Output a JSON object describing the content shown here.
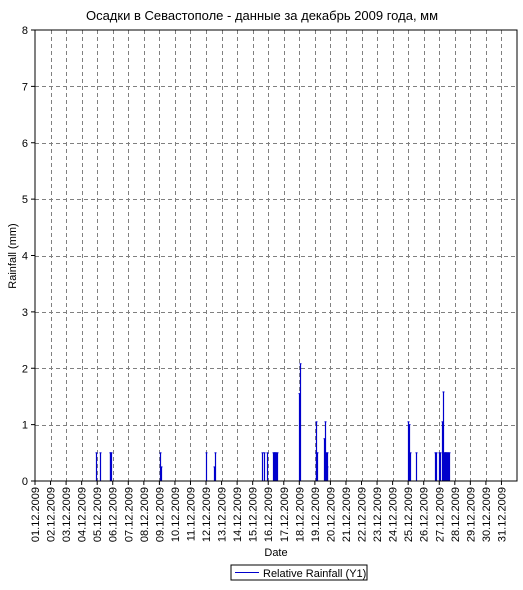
{
  "chart_data": {
    "type": "bar",
    "title": "Осадки в Севастополе - данные за декабрь 2009 года, мм",
    "xlabel": "Date",
    "ylabel": "Rainfall (mm)",
    "ylim": [
      0,
      8
    ],
    "y_ticks": [
      "0",
      "1",
      "2",
      "3",
      "4",
      "5",
      "6",
      "7",
      "8"
    ],
    "x_range_days": [
      1,
      32
    ],
    "grid": true,
    "legend_position": "bottom",
    "colors": {
      "series": "#0000cc",
      "grid": "#808080",
      "axis": "#000000",
      "background": "#ffffff"
    },
    "categories": [
      "01.12.2009",
      "02.12.2009",
      "03.12.2009",
      "04.12.2009",
      "05.12.2009",
      "06.12.2009",
      "07.12.2009",
      "08.12.2009",
      "09.12.2009",
      "10.12.2009",
      "11.12.2009",
      "12.12.2009",
      "13.12.2009",
      "14.12.2009",
      "15.12.2009",
      "16.12.2009",
      "17.12.2009",
      "18.12.2009",
      "19.12.2009",
      "20.12.2009",
      "21.12.2009",
      "22.12.2009",
      "23.12.2009",
      "24.12.2009",
      "25.12.2009",
      "26.12.2009",
      "27.12.2009",
      "28.12.2009",
      "29.12.2009",
      "30.12.2009",
      "31.12.2009"
    ],
    "series": [
      {
        "name": "Relative Rainfall (Y1)",
        "points": [
          {
            "x": 4.9,
            "y": 0.5
          },
          {
            "x": 5.2,
            "y": 0.5
          },
          {
            "x": 5.8,
            "y": 0.5
          },
          {
            "x": 5.85,
            "y": 0.5
          },
          {
            "x": 5.9,
            "y": 0.5
          },
          {
            "x": 9.05,
            "y": 0.5
          },
          {
            "x": 9.1,
            "y": 0.25
          },
          {
            "x": 12.0,
            "y": 0.5
          },
          {
            "x": 12.5,
            "y": 0.25
          },
          {
            "x": 12.6,
            "y": 0.5
          },
          {
            "x": 15.6,
            "y": 0.5
          },
          {
            "x": 15.7,
            "y": 0.5
          },
          {
            "x": 15.9,
            "y": 0.5
          },
          {
            "x": 16.3,
            "y": 0.5
          },
          {
            "x": 16.35,
            "y": 0.5
          },
          {
            "x": 16.4,
            "y": 0.5
          },
          {
            "x": 16.45,
            "y": 0.5
          },
          {
            "x": 16.5,
            "y": 0.5
          },
          {
            "x": 16.55,
            "y": 0.5
          },
          {
            "x": 18.0,
            "y": 1.55
          },
          {
            "x": 18.05,
            "y": 2.08
          },
          {
            "x": 19.05,
            "y": 1.05
          },
          {
            "x": 19.1,
            "y": 0.5
          },
          {
            "x": 19.15,
            "y": 0.5
          },
          {
            "x": 19.6,
            "y": 0.75
          },
          {
            "x": 19.65,
            "y": 1.05
          },
          {
            "x": 19.7,
            "y": 0.5
          },
          {
            "x": 19.75,
            "y": 0.25
          },
          {
            "x": 19.8,
            "y": 0.5
          },
          {
            "x": 25.0,
            "y": 1.05
          },
          {
            "x": 25.05,
            "y": 1.0
          },
          {
            "x": 25.1,
            "y": 0.5
          },
          {
            "x": 25.5,
            "y": 0.5
          },
          {
            "x": 26.75,
            "y": 0.5
          },
          {
            "x": 26.8,
            "y": 0.5
          },
          {
            "x": 27.0,
            "y": 0.5
          },
          {
            "x": 27.05,
            "y": 0.5
          },
          {
            "x": 27.2,
            "y": 1.05
          },
          {
            "x": 27.25,
            "y": 1.58
          },
          {
            "x": 27.3,
            "y": 0.5
          },
          {
            "x": 27.35,
            "y": 0.5
          },
          {
            "x": 27.4,
            "y": 0.5
          },
          {
            "x": 27.45,
            "y": 0.5
          },
          {
            "x": 27.5,
            "y": 0.5
          },
          {
            "x": 27.55,
            "y": 0.5
          },
          {
            "x": 27.6,
            "y": 0.5
          }
        ]
      }
    ]
  }
}
